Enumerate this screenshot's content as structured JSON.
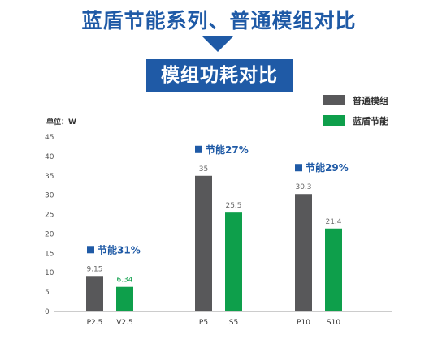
{
  "header": {
    "title": "蓝盾节能系列、普通模组对比",
    "subtitle": "模组功耗对比"
  },
  "colors": {
    "brand": "#1f5aa6",
    "normal": "#58585a",
    "energy_saving": "#0e9f4b"
  },
  "chart_data": {
    "type": "bar",
    "title": "模组功耗对比",
    "ylabel": "单位：W",
    "ylim": [
      0,
      45
    ],
    "yticks": [
      0,
      5,
      10,
      15,
      20,
      25,
      30,
      35,
      40,
      45
    ],
    "grid": false,
    "legend_position": "top-right",
    "legend": [
      "普通模组",
      "蓝盾节能"
    ],
    "groups": [
      {
        "note": "节能31%",
        "bars": [
          {
            "label": "P2.5",
            "value": 9.15,
            "value_text": "9.15",
            "series": "普通模组"
          },
          {
            "label": "V2.5",
            "value": 6.34,
            "value_text": "6.34",
            "series": "蓝盾节能"
          }
        ]
      },
      {
        "note": "节能27%",
        "bars": [
          {
            "label": "P5",
            "value": 35,
            "value_text": "35",
            "series": "普通模组"
          },
          {
            "label": "S5",
            "value": 25.5,
            "value_text": "25.5",
            "series": "蓝盾节能"
          }
        ]
      },
      {
        "note": "节能29%",
        "bars": [
          {
            "label": "P10",
            "value": 30.3,
            "value_text": "30.3",
            "series": "普通模组"
          },
          {
            "label": "S10",
            "value": 21.4,
            "value_text": "21.4",
            "series": "蓝盾节能"
          }
        ]
      }
    ]
  }
}
